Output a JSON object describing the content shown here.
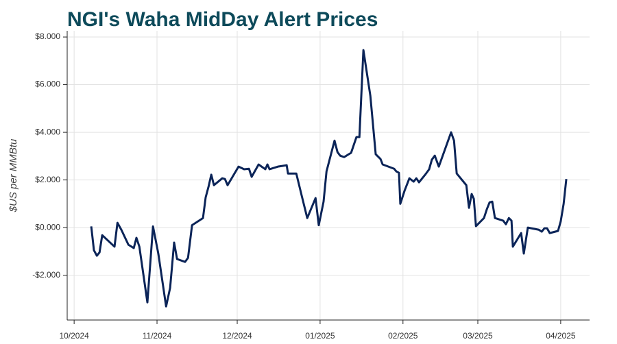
{
  "chart_data": {
    "type": "line",
    "title": "NGI's Waha MidDay Alert Prices",
    "y_label": "$US per MMBtu",
    "x": [
      6.4,
      7.4,
      8.5,
      9.5,
      10.5,
      15.1,
      16.2,
      17.7,
      20.3,
      22.3,
      23.3,
      24.4,
      27.4,
      29.5,
      31.5,
      34.4,
      35.9,
      37.4,
      38.5,
      41.5,
      42.6,
      44.1,
      48.2,
      49.2,
      50.3,
      51.3,
      52.3,
      55.4,
      56.4,
      57.4,
      61.5,
      63.6,
      65.4,
      66.4,
      69.0,
      71.5,
      72.3,
      73.1,
      76.2,
      77.9,
      79.5,
      80.0,
      83.1,
      85.1,
      87.2,
      90.3,
      91.5,
      93.3,
      94.4,
      97.4,
      98.5,
      99.5,
      101.0,
      103.6,
      105.6,
      106.7,
      108.2,
      110.8,
      112.8,
      114.6,
      115.4,
      119.7,
      120.5,
      121.5,
      122.0,
      123.6,
      125.4,
      127.0,
      128.0,
      129.0,
      131.3,
      132.8,
      133.8,
      134.9,
      136.4,
      141.0,
      142.1,
      143.1,
      146.7,
      147.7,
      148.7,
      149.5,
      150.3,
      153.3,
      154.4,
      155.4,
      156.4,
      157.4,
      160.5,
      161.5,
      162.6,
      163.6,
      164.1,
      167.2,
      168.2,
      169.7,
      173.8,
      174.9,
      175.9,
      176.9,
      177.9,
      181.0,
      182.0,
      183.1,
      184.1
    ],
    "series": [
      {
        "name": "Waha MidDay Alert",
        "color": "#0b2458",
        "values": [
          0.05,
          -0.95,
          -1.18,
          -1.04,
          -0.32,
          -0.8,
          0.2,
          -0.1,
          -0.72,
          -0.86,
          -0.43,
          -0.8,
          -3.14,
          0.05,
          -1.1,
          -3.31,
          -2.53,
          -0.63,
          -1.32,
          -1.44,
          -1.27,
          0.1,
          0.4,
          1.27,
          1.73,
          2.22,
          1.78,
          2.07,
          2.04,
          1.78,
          2.56,
          2.45,
          2.47,
          2.13,
          2.65,
          2.45,
          2.65,
          2.45,
          2.56,
          2.59,
          2.62,
          2.27,
          2.27,
          1.35,
          0.4,
          1.24,
          0.1,
          1.09,
          2.36,
          3.65,
          3.17,
          3.02,
          2.96,
          3.14,
          3.8,
          3.8,
          7.45,
          5.53,
          3.08,
          2.88,
          2.65,
          2.47,
          2.36,
          2.3,
          1.0,
          1.55,
          2.07,
          1.93,
          2.07,
          1.9,
          2.22,
          2.45,
          2.85,
          3.02,
          2.56,
          4.0,
          3.65,
          2.27,
          1.78,
          0.83,
          1.41,
          1.21,
          0.06,
          0.4,
          0.78,
          1.06,
          1.09,
          0.4,
          0.29,
          0.14,
          0.4,
          0.29,
          -0.8,
          -0.23,
          -1.09,
          0,
          -0.09,
          -0.17,
          -0.03,
          -0.03,
          -0.23,
          -0.14,
          0.26,
          1.0,
          2.04
        ]
      }
    ],
    "xlim": [
      -2.6,
      192.8
    ],
    "xticks": [
      {
        "value": 0,
        "label": "10/2024"
      },
      {
        "value": 31,
        "label": "11/2024"
      },
      {
        "value": 61,
        "label": "12/2024"
      },
      {
        "value": 92,
        "label": "01/2025"
      },
      {
        "value": 123,
        "label": "02/2025"
      },
      {
        "value": 151,
        "label": "03/2025"
      },
      {
        "value": 182,
        "label": "04/2025"
      }
    ],
    "ylim": [
      -3.88,
      8.26
    ],
    "yticks": [
      {
        "value": -2,
        "label": "-$2.000"
      },
      {
        "value": 0,
        "label": "$0.000"
      },
      {
        "value": 2,
        "label": "$2.000"
      },
      {
        "value": 4,
        "label": "$4.000"
      },
      {
        "value": 6,
        "label": "$6.000"
      },
      {
        "value": 8,
        "label": "$8.000"
      }
    ],
    "grid": true
  }
}
